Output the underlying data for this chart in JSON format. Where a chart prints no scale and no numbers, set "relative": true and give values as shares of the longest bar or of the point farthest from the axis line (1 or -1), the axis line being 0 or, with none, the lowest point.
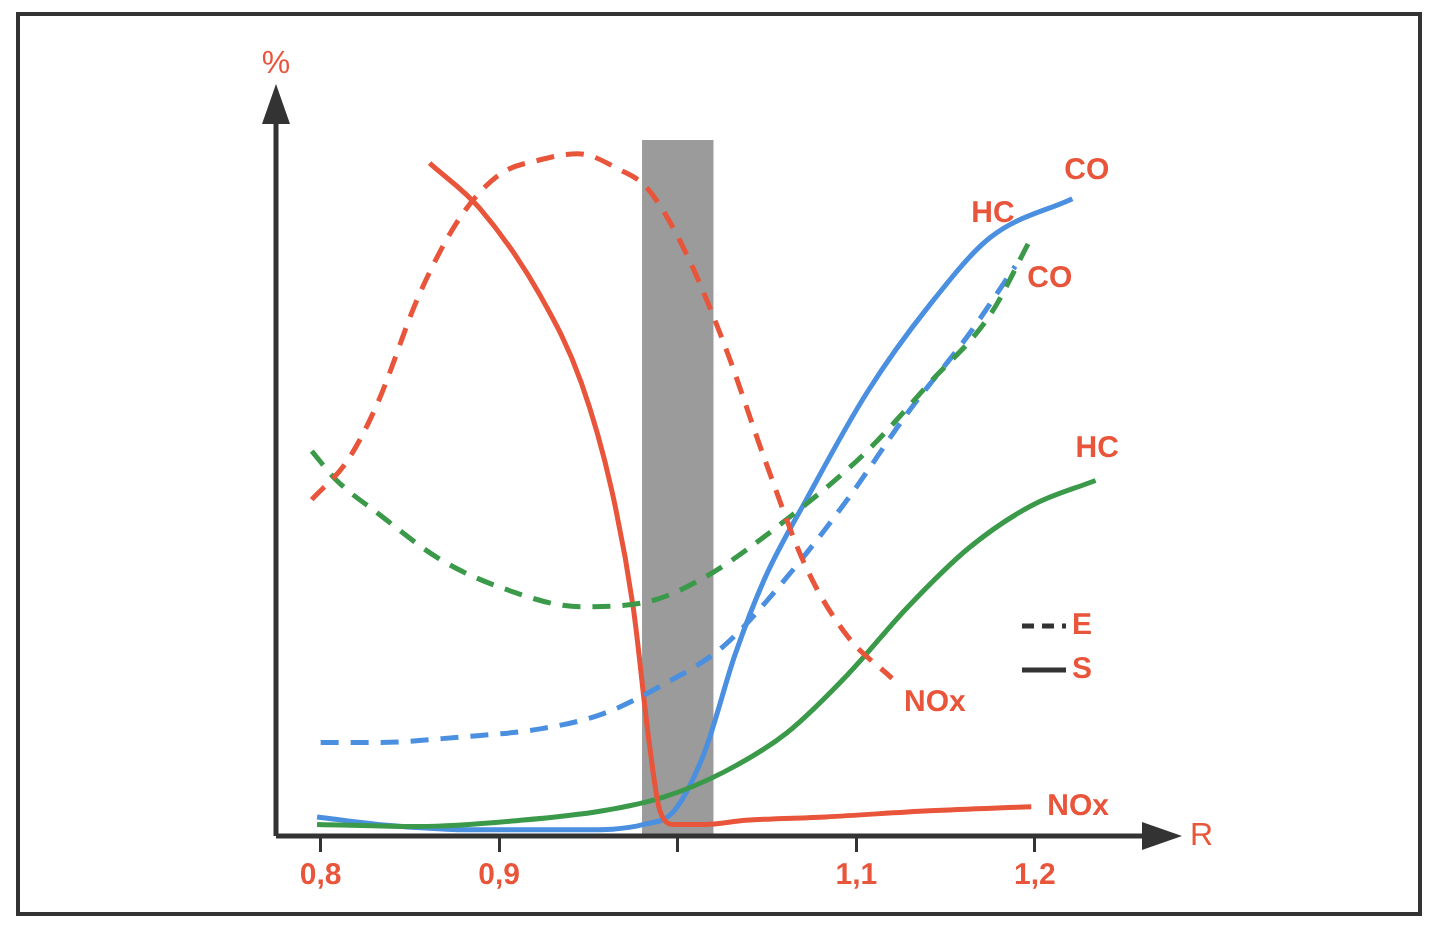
{
  "chart_data": {
    "type": "line",
    "relative": true,
    "xlabel": "R",
    "ylabel": "%",
    "xlim": [
      0.775,
      1.26
    ],
    "xticks": [
      {
        "value": 0.8,
        "label": "0,8"
      },
      {
        "value": 0.9,
        "label": "0,9"
      },
      {
        "value": 1.0,
        "label": null
      },
      {
        "value": 1.1,
        "label": "1,1"
      },
      {
        "value": 1.2,
        "label": "1,2"
      }
    ],
    "bands": [
      {
        "axis": "x",
        "from": 0.98,
        "to": 1.02,
        "color": "#222222"
      }
    ],
    "annotations": [
      "E",
      "S"
    ],
    "grid": false,
    "legend": false,
    "marker": "none",
    "series": [
      {
        "name": "NOx",
        "color": "#e8553a",
        "line_style": "dashed",
        "x": [
          0.795,
          0.815,
          0.832,
          0.855,
          0.878,
          0.9,
          0.923,
          0.944,
          0.967,
          0.983,
          1.003,
          1.026,
          1.049,
          1.072,
          1.095,
          1.12
        ],
        "values": [
          0.493,
          0.55,
          0.635,
          0.792,
          0.906,
          0.969,
          0.991,
          1.0,
          0.977,
          0.949,
          0.863,
          0.721,
          0.55,
          0.393,
          0.293,
          0.231
        ]
      },
      {
        "name": "HC",
        "color": "#3a9a4a",
        "line_style": "dashed",
        "x": [
          0.795,
          0.809,
          0.832,
          0.866,
          0.9,
          0.946,
          0.981,
          1.015,
          1.061,
          1.106,
          1.141,
          1.175,
          1.198
        ],
        "values": [
          0.564,
          0.521,
          0.473,
          0.407,
          0.365,
          0.336,
          0.342,
          0.379,
          0.464,
          0.564,
          0.664,
          0.764,
          0.877
        ]
      },
      {
        "name": "CO",
        "color": "#4a8fe0",
        "line_style": "dashed",
        "x": [
          0.8,
          0.832,
          0.878,
          0.923,
          0.958,
          0.992,
          1.026,
          1.061,
          1.095,
          1.129,
          1.163,
          1.189
        ],
        "values": [
          0.137,
          0.137,
          0.145,
          0.157,
          0.179,
          0.222,
          0.279,
          0.379,
          0.493,
          0.621,
          0.735,
          0.835
        ]
      },
      {
        "name": "NOx",
        "color": "#e8553a",
        "line_style": "solid",
        "x": [
          0.861,
          0.889,
          0.923,
          0.946,
          0.963,
          0.975,
          0.984,
          0.99,
          0.998,
          1.015,
          1.038,
          1.083,
          1.141,
          1.198
        ],
        "values": [
          0.986,
          0.92,
          0.792,
          0.664,
          0.507,
          0.336,
          0.137,
          0.037,
          0.017,
          0.017,
          0.023,
          0.028,
          0.037,
          0.043
        ]
      },
      {
        "name": "HC",
        "color": "#3a9a4a",
        "line_style": "solid",
        "x": [
          0.798,
          0.855,
          0.912,
          0.958,
          0.992,
          1.026,
          1.061,
          1.095,
          1.129,
          1.163,
          1.198,
          1.234
        ],
        "values": [
          0.017,
          0.014,
          0.023,
          0.037,
          0.057,
          0.094,
          0.151,
          0.236,
          0.336,
          0.422,
          0.484,
          0.521
        ]
      },
      {
        "name": "CO",
        "color": "#4a8fe0",
        "line_style": "solid",
        "x": [
          0.798,
          0.832,
          0.889,
          0.946,
          0.981,
          0.998,
          1.015,
          1.032,
          1.049,
          1.072,
          1.106,
          1.141,
          1.175,
          1.221
        ],
        "values": [
          0.028,
          0.017,
          0.009,
          0.009,
          0.017,
          0.037,
          0.123,
          0.265,
          0.379,
          0.493,
          0.65,
          0.778,
          0.877,
          0.934
        ]
      }
    ]
  }
}
